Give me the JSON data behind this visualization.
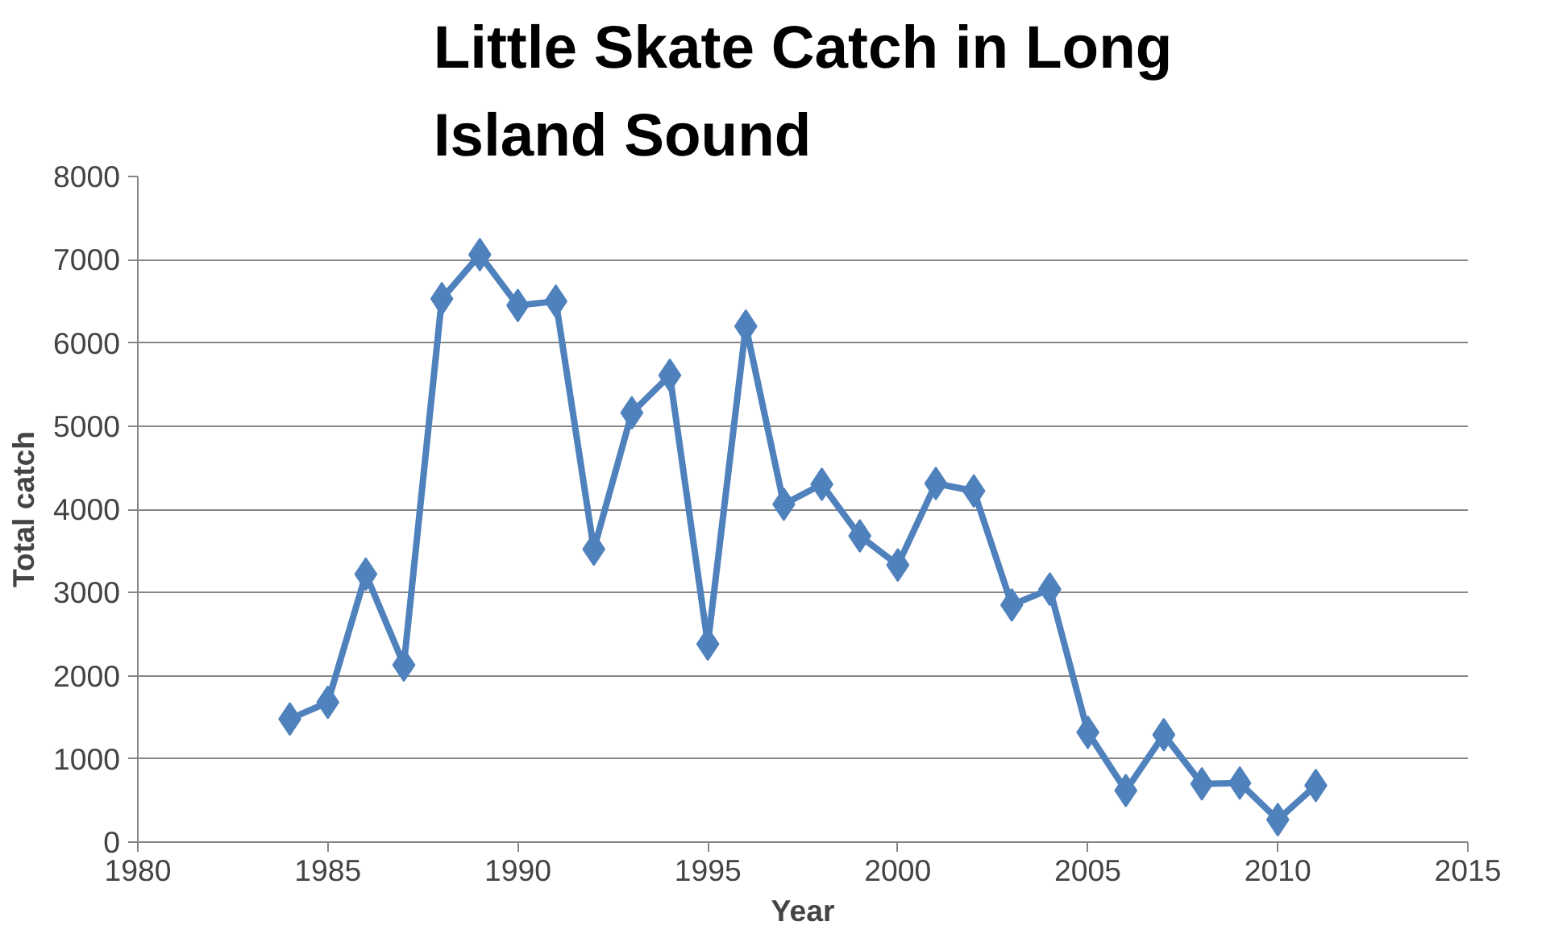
{
  "chart_data": {
    "type": "line",
    "title": "Little Skate Catch in Long Island Sound",
    "xlabel": "Year",
    "ylabel": "Total catch",
    "x": [
      1984,
      1985,
      1986,
      1987,
      1988,
      1989,
      1990,
      1991,
      1992,
      1993,
      1994,
      1995,
      1996,
      1997,
      1998,
      1999,
      2000,
      2001,
      2002,
      2003,
      2004,
      2005,
      2006,
      2007,
      2008,
      2009,
      2010,
      2011
    ],
    "series": [
      {
        "color": "#4f81bd",
        "values": [
          1480,
          1680,
          3220,
          2130,
          6530,
          7060,
          6450,
          6500,
          3520,
          5160,
          5610,
          2380,
          6200,
          4060,
          4300,
          3680,
          3330,
          4310,
          4220,
          2850,
          3040,
          1320,
          620,
          1290,
          700,
          710,
          270,
          680
        ]
      }
    ],
    "xlim": [
      1980,
      2015
    ],
    "xticks": [
      1980,
      1985,
      1990,
      1995,
      2000,
      2005,
      2010,
      2015
    ],
    "ylim": [
      0,
      8000
    ],
    "yticks": [
      0,
      1000,
      2000,
      3000,
      4000,
      5000,
      6000,
      7000,
      8000
    ],
    "grid": "y",
    "marker": "diamond",
    "line_style": "solid"
  }
}
